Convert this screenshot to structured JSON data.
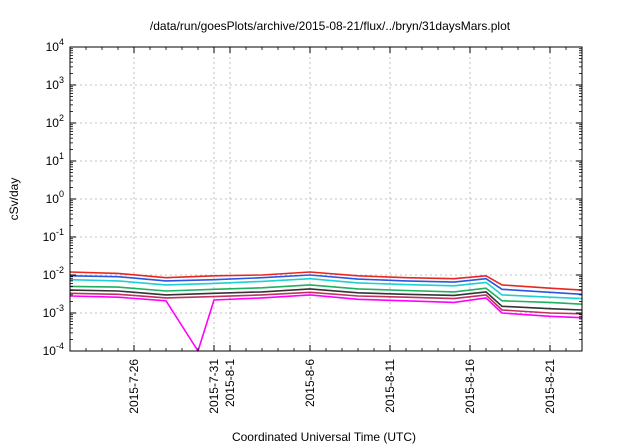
{
  "chart_data": {
    "type": "line",
    "title": "/data/run/goesPlots/archive/2015-08-21/flux/../bryn/31daysMars.plot",
    "xlabel": "Coordinated Universal Time (UTC)",
    "ylabel": "cSv/day",
    "y_scale": "log",
    "ylim": [
      0.0001,
      10000
    ],
    "xlim": [
      "2015-07-22",
      "2015-08-23"
    ],
    "y_ticks": [
      {
        "base": "10",
        "exp": "4"
      },
      {
        "base": "10",
        "exp": "3"
      },
      {
        "base": "10",
        "exp": "2"
      },
      {
        "base": "10",
        "exp": "1"
      },
      {
        "base": "10",
        "exp": "0"
      },
      {
        "base": "10",
        "exp": "-1"
      },
      {
        "base": "10",
        "exp": "-2"
      },
      {
        "base": "10",
        "exp": "-3"
      },
      {
        "base": "10",
        "exp": "-4"
      }
    ],
    "x_ticks": [
      "2015-7-26",
      "2015-7-31",
      "2015-8-1",
      "2015-8-6",
      "2015-8-11",
      "2015-8-16",
      "2015-8-21"
    ],
    "grid": true,
    "legend": "none",
    "series": [
      {
        "color": "#e8281e",
        "x": [
          "2015-07-22",
          "2015-07-25",
          "2015-07-28",
          "2015-07-31",
          "2015-08-03",
          "2015-08-06",
          "2015-08-09",
          "2015-08-12",
          "2015-08-15",
          "2015-08-17",
          "2015-08-18",
          "2015-08-21",
          "2015-08-23"
        ],
        "y": [
          0.012,
          0.011,
          0.0085,
          0.0095,
          0.01,
          0.012,
          0.0095,
          0.0085,
          0.008,
          0.0095,
          0.0055,
          0.0045,
          0.004
        ]
      },
      {
        "color": "#2a55e8",
        "x": [
          "2015-07-22",
          "2015-07-25",
          "2015-07-28",
          "2015-07-31",
          "2015-08-03",
          "2015-08-06",
          "2015-08-09",
          "2015-08-12",
          "2015-08-15",
          "2015-08-17",
          "2015-08-18",
          "2015-08-21",
          "2015-08-23"
        ],
        "y": [
          0.0095,
          0.009,
          0.007,
          0.0075,
          0.0085,
          0.01,
          0.0078,
          0.007,
          0.0065,
          0.008,
          0.0042,
          0.0035,
          0.0031
        ]
      },
      {
        "color": "#1fd0d0",
        "x": [
          "2015-07-22",
          "2015-07-25",
          "2015-07-28",
          "2015-07-31",
          "2015-08-03",
          "2015-08-06",
          "2015-08-09",
          "2015-08-12",
          "2015-08-15",
          "2015-08-17",
          "2015-08-18",
          "2015-08-21",
          "2015-08-23"
        ],
        "y": [
          0.0075,
          0.007,
          0.0055,
          0.006,
          0.0068,
          0.008,
          0.0062,
          0.0056,
          0.0052,
          0.0064,
          0.003,
          0.0026,
          0.0024
        ]
      },
      {
        "color": "#20b060",
        "x": [
          "2015-07-22",
          "2015-07-25",
          "2015-07-28",
          "2015-07-31",
          "2015-08-03",
          "2015-08-06",
          "2015-08-09",
          "2015-08-12",
          "2015-08-15",
          "2015-08-17",
          "2015-08-18",
          "2015-08-21",
          "2015-08-23"
        ],
        "y": [
          0.005,
          0.0048,
          0.0038,
          0.0042,
          0.0046,
          0.0055,
          0.0043,
          0.0039,
          0.0036,
          0.0045,
          0.0021,
          0.0019,
          0.0017
        ]
      },
      {
        "color": "#333333",
        "x": [
          "2015-07-22",
          "2015-07-25",
          "2015-07-28",
          "2015-07-31",
          "2015-08-03",
          "2015-08-06",
          "2015-08-09",
          "2015-08-12",
          "2015-08-15",
          "2015-08-17",
          "2015-08-18",
          "2015-08-21",
          "2015-08-23"
        ],
        "y": [
          0.004,
          0.0038,
          0.003,
          0.0033,
          0.0036,
          0.0043,
          0.0034,
          0.0031,
          0.0029,
          0.0036,
          0.0015,
          0.0013,
          0.0012
        ]
      },
      {
        "color": "#c03060",
        "x": [
          "2015-07-22",
          "2015-07-25",
          "2015-07-28",
          "2015-07-31",
          "2015-08-03",
          "2015-08-06",
          "2015-08-09",
          "2015-08-12",
          "2015-08-15",
          "2015-08-17",
          "2015-08-18",
          "2015-08-21",
          "2015-08-23"
        ],
        "y": [
          0.0033,
          0.0031,
          0.0025,
          0.0027,
          0.003,
          0.0035,
          0.0028,
          0.0026,
          0.0024,
          0.003,
          0.0012,
          0.001,
          0.00095
        ]
      },
      {
        "color": "#ff00ff",
        "x": [
          "2015-07-22",
          "2015-07-25",
          "2015-07-28",
          "2015-07-30",
          "2015-07-31",
          "2015-08-03",
          "2015-08-06",
          "2015-08-09",
          "2015-08-12",
          "2015-08-15",
          "2015-08-17",
          "2015-08-18",
          "2015-08-21",
          "2015-08-23"
        ],
        "y": [
          0.0028,
          0.0026,
          0.0021,
          0.0001,
          0.0022,
          0.0025,
          0.003,
          0.0023,
          0.0021,
          0.0019,
          0.0025,
          0.001,
          0.00082,
          0.00075
        ]
      }
    ]
  }
}
